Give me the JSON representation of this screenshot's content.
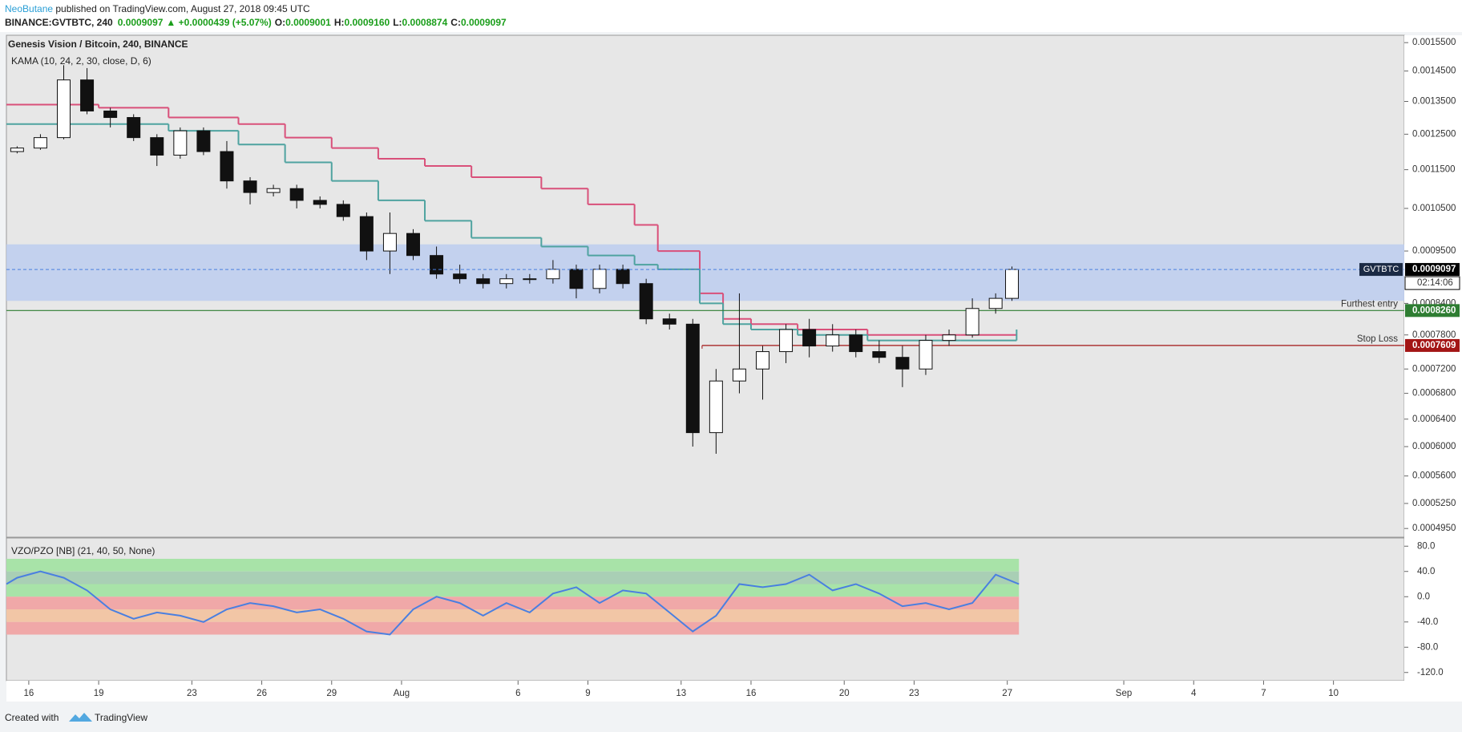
{
  "header": {
    "author": "NeoButane",
    "published": " published on TradingView.com, August 27, 2018 09:45 UTC",
    "symbol": "BINANCE:GVTBTC, 240",
    "price": "0.0009097",
    "change": "▲ +0.0000439 (+5.07%)",
    "ohlc": [
      {
        "label": "O:",
        "value": "0.0009001"
      },
      {
        "label": "H:",
        "value": "0.0009160"
      },
      {
        "label": "L:",
        "value": "0.0008874"
      },
      {
        "label": "C:",
        "value": "0.0009097"
      }
    ]
  },
  "footer": {
    "created": "Created with",
    "brand": "TradingView"
  },
  "chart_data": [
    {
      "type": "candlestick",
      "title": "Genesis Vision / Bitcoin, 240, BINANCE",
      "subtitle": "KAMA (10, 24, 2, 30, close, D, 6)",
      "log": true,
      "xlim": [
        -0.96,
        59.04
      ],
      "xticks": [
        {
          "value": 0,
          "label": "16"
        },
        {
          "value": 3,
          "label": "19"
        },
        {
          "value": 7,
          "label": "23"
        },
        {
          "value": 10,
          "label": "26"
        },
        {
          "value": 13,
          "label": "29"
        },
        {
          "value": 16,
          "label": "Aug"
        },
        {
          "value": 21,
          "label": "6"
        },
        {
          "value": 24,
          "label": "9"
        },
        {
          "value": 28,
          "label": "13"
        },
        {
          "value": 31,
          "label": "16"
        },
        {
          "value": 35,
          "label": "20"
        },
        {
          "value": 38,
          "label": "23"
        },
        {
          "value": 42,
          "label": "27"
        },
        {
          "value": 47,
          "label": "Sep"
        },
        {
          "value": 50,
          "label": "4"
        },
        {
          "value": 53,
          "label": "7"
        },
        {
          "value": 56,
          "label": "10"
        }
      ],
      "ylim": [
        0.000485,
        0.001577
      ],
      "yticks": [
        {
          "value": 0.00155,
          "label": "0.0015500"
        },
        {
          "value": 0.00145,
          "label": "0.0014500"
        },
        {
          "value": 0.00135,
          "label": "0.0013500"
        },
        {
          "value": 0.00125,
          "label": "0.0012500"
        },
        {
          "value": 0.00115,
          "label": "0.0011500"
        },
        {
          "value": 0.00105,
          "label": "0.0010500"
        },
        {
          "value": 0.00095,
          "label": "0.0009500"
        },
        {
          "value": 0.00084,
          "label": "0.0008400"
        },
        {
          "value": 0.00078,
          "label": "0.0007800"
        },
        {
          "value": 0.00072,
          "label": "0.0007200"
        },
        {
          "value": 0.00068,
          "label": "0.0006800"
        },
        {
          "value": 0.00064,
          "label": "0.0006400"
        },
        {
          "value": 0.0006,
          "label": "0.0006000"
        },
        {
          "value": 0.00056,
          "label": "0.0005600"
        },
        {
          "value": 0.000525,
          "label": "0.0005250"
        },
        {
          "value": 0.000495,
          "label": "0.0004950"
        }
      ],
      "x": [
        -0.5,
        0.5,
        1.5,
        2.5,
        3.5,
        4.5,
        5.5,
        6.5,
        7.5,
        8.5,
        9.5,
        10.5,
        11.5,
        12.5,
        13.5,
        14.5,
        15.5,
        16.5,
        17.5,
        18.5,
        19.5,
        20.5,
        21.5,
        22.5,
        23.5,
        24.5,
        25.5,
        26.5,
        27.5,
        28.5,
        29.5,
        30.5,
        31.5,
        32.5,
        33.5,
        34.5,
        35.5,
        36.5,
        37.5,
        38.5,
        39.5,
        40.5,
        41.5,
        42.2
      ],
      "open": [
        0.0012,
        0.00121,
        0.00124,
        0.00142,
        0.00132,
        0.0013,
        0.00124,
        0.00119,
        0.00126,
        0.0012,
        0.00112,
        0.00109,
        0.0011,
        0.00107,
        0.00106,
        0.00103,
        0.00095,
        0.00099,
        0.00094,
        0.0009,
        0.00089,
        0.00088,
        0.00089,
        0.00089,
        0.00091,
        0.00087,
        0.00091,
        0.00088,
        0.00081,
        0.0008,
        0.00062,
        0.0007,
        0.00072,
        0.00075,
        0.00079,
        0.00076,
        0.00078,
        0.00075,
        0.00074,
        0.00072,
        0.00077,
        0.00078,
        0.00083,
        0.00085
      ],
      "high": [
        0.001215,
        0.00125,
        0.00147,
        0.00146,
        0.00133,
        0.00131,
        0.00125,
        0.00127,
        0.00127,
        0.00123,
        0.00113,
        0.00111,
        0.00111,
        0.00108,
        0.00107,
        0.00104,
        0.00104,
        0.001,
        0.00096,
        0.00092,
        0.0009,
        0.0009,
        0.0009,
        0.00093,
        0.00092,
        0.00092,
        0.00092,
        0.00089,
        0.00082,
        0.00081,
        0.00072,
        0.00086,
        0.00076,
        0.0008,
        0.00081,
        0.0008,
        0.00079,
        0.00077,
        0.00076,
        0.00078,
        0.00079,
        0.00085,
        0.00086,
        0.000916
      ],
      "low": [
        0.001195,
        0.001205,
        0.001235,
        0.00131,
        0.00127,
        0.00123,
        0.00116,
        0.00118,
        0.00119,
        0.0011,
        0.00106,
        0.00108,
        0.00105,
        0.00105,
        0.00102,
        0.00093,
        0.0009,
        0.00093,
        0.00089,
        0.00088,
        0.00087,
        0.00087,
        0.00088,
        0.00088,
        0.00085,
        0.00086,
        0.00087,
        0.0008,
        0.00079,
        0.0006,
        0.00059,
        0.00068,
        0.00067,
        0.00073,
        0.00074,
        0.00075,
        0.00074,
        0.00073,
        0.00069,
        0.00071,
        0.00076,
        0.000775,
        0.00082,
        0.000845
      ],
      "close": [
        0.00121,
        0.00124,
        0.00142,
        0.00132,
        0.0013,
        0.00124,
        0.00119,
        0.00126,
        0.0012,
        0.00112,
        0.00109,
        0.0011,
        0.00107,
        0.00106,
        0.00103,
        0.00095,
        0.00099,
        0.00094,
        0.0009,
        0.00089,
        0.00088,
        0.00089,
        0.00089,
        0.00091,
        0.00087,
        0.00091,
        0.00088,
        0.00081,
        0.0008,
        0.00062,
        0.0007,
        0.00072,
        0.00075,
        0.00079,
        0.00076,
        0.00078,
        0.00075,
        0.00074,
        0.00072,
        0.00077,
        0.00078,
        0.00083,
        0.00085,
        0.0009097
      ],
      "symbol_tag": "GVTBTC",
      "countdown": "02:14:06",
      "zone": {
        "from": 0.000845,
        "to": 0.000965,
        "color": "#bccdee"
      },
      "levels": [
        {
          "label": "Furthest entry",
          "value": 0.000826,
          "value_label": "0.0008260",
          "color": "#2e7d32"
        },
        {
          "label": "Stop Loss",
          "value": 0.0007609,
          "color": "#a31515",
          "from_x": 28.9
        }
      ],
      "lines": [
        {
          "color": "#d9507a",
          "step": true,
          "x": [
            -0.96,
            3,
            6,
            9,
            11,
            13,
            15,
            17,
            19,
            22,
            24,
            26,
            27,
            28.8,
            29.8,
            31,
            33,
            36,
            40,
            42.4
          ],
          "values": [
            0.00134,
            0.00133,
            0.0013,
            0.00128,
            0.00124,
            0.00121,
            0.00118,
            0.00116,
            0.00113,
            0.0011,
            0.00106,
            0.00101,
            0.00095,
            0.00086,
            0.00081,
            0.0008,
            0.00079,
            0.00078,
            0.00078,
            0.00078
          ]
        },
        {
          "color": "#4fa3a0",
          "step": true,
          "x": [
            -0.96,
            3,
            6,
            9,
            11,
            13,
            15,
            17,
            19,
            22,
            24,
            26,
            27,
            28.8,
            29.8,
            31,
            33,
            36,
            40,
            42.4
          ],
          "values": [
            0.00128,
            0.00128,
            0.00126,
            0.00122,
            0.00117,
            0.00112,
            0.00107,
            0.00102,
            0.00098,
            0.00096,
            0.00094,
            0.00092,
            0.00091,
            0.00084,
            0.0008,
            0.00079,
            0.00078,
            0.00077,
            0.00077,
            0.00079
          ]
        }
      ]
    },
    {
      "type": "line",
      "title": "VZO/PZO [NB] (21, 40, 50, None)",
      "color": "#4a7fe0",
      "ylim": [
        -133,
        93
      ],
      "yticks": [
        {
          "value": 80,
          "label": "80.0"
        },
        {
          "value": 40,
          "label": "40.0"
        },
        {
          "value": 0,
          "label": "0.0"
        },
        {
          "value": -40,
          "label": "-40.0"
        },
        {
          "value": -80,
          "label": "-80.0"
        },
        {
          "value": -120,
          "label": "-120.0"
        }
      ],
      "bands": [
        {
          "from": 40,
          "to": 60,
          "color": "#a8e3a8"
        },
        {
          "from": 20,
          "to": 40,
          "color": "#a9cfb5"
        },
        {
          "from": 0,
          "to": 20,
          "color": "#a8e3a8"
        },
        {
          "from": -20,
          "to": 0,
          "color": "#f0a8a8"
        },
        {
          "from": -40,
          "to": -20,
          "color": "#f2c6a6"
        },
        {
          "from": -60,
          "to": -40,
          "color": "#f0a8a8"
        }
      ],
      "x": [
        -0.96,
        -0.5,
        0.5,
        1.5,
        2.5,
        3.5,
        4.5,
        5.5,
        6.5,
        7.5,
        8.5,
        9.5,
        10.5,
        11.5,
        12.5,
        13.5,
        14.5,
        15.5,
        16.5,
        17.5,
        18.5,
        19.5,
        20.5,
        21.5,
        22.5,
        23.5,
        24.5,
        25.5,
        26.5,
        27.5,
        28.5,
        29.5,
        30.5,
        31.5,
        32.5,
        33.5,
        34.5,
        35.5,
        36.5,
        37.5,
        38.5,
        39.5,
        40.5,
        41.5,
        42.5
      ],
      "values": [
        20,
        30,
        40,
        30,
        10,
        -20,
        -35,
        -25,
        -30,
        -40,
        -20,
        -10,
        -15,
        -25,
        -20,
        -35,
        -55,
        -60,
        -20,
        0,
        -10,
        -30,
        -10,
        -25,
        5,
        15,
        -10,
        10,
        5,
        -25,
        -55,
        -30,
        20,
        15,
        20,
        35,
        10,
        20,
        5,
        -15,
        -10,
        -20,
        -10,
        35,
        20
      ]
    }
  ]
}
